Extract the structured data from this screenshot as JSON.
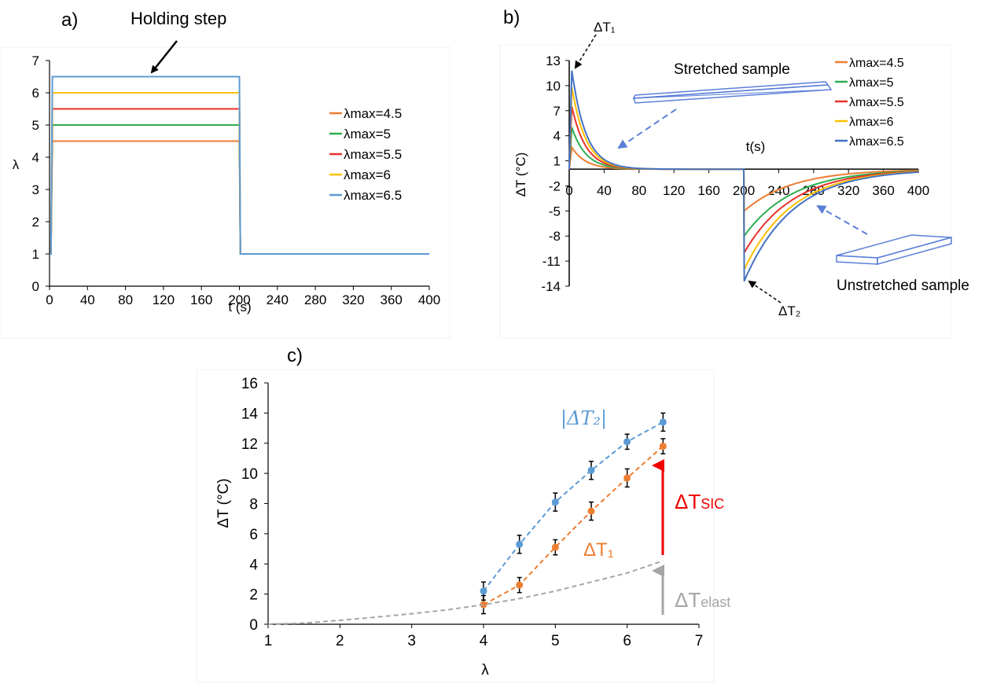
{
  "panels": {
    "a": {
      "label": "a)",
      "annotation": "Holding step"
    },
    "b": {
      "label": "b)",
      "annotation_stretched": "Stretched sample",
      "annotation_unstretched": "Unstretched sample",
      "peak_label_1": "ΔT₁",
      "peak_label_2": "ΔT₂",
      "inner_xlabel": "t(s)"
    },
    "c": {
      "label": "c)",
      "label_abs_dt2": "|ΔT₂|",
      "label_dt1": "ΔT₁",
      "label_dtsic_main": "ΔT",
      "label_dtsic_sub": "SIC",
      "label_dtelast_main": "ΔT",
      "label_dtelast_sub": "elast"
    }
  },
  "chart_data": [
    {
      "id": "a",
      "type": "line",
      "xlabel": "t (s)",
      "ylabel": "λ",
      "xlim": [
        0,
        400
      ],
      "ylim": [
        0,
        7
      ],
      "xticks": [
        "0",
        "40",
        "80",
        "120",
        "160",
        "200",
        "240",
        "280",
        "320",
        "360",
        "400"
      ],
      "yticks": [
        "0",
        "1",
        "2",
        "3",
        "4",
        "5",
        "6",
        "7"
      ],
      "legend_position": "right",
      "series": [
        {
          "name": "λmax=4.5",
          "color": "#ED7D31",
          "hold_value": 4.5,
          "hold_start": 3,
          "hold_end": 200,
          "final_value": 1
        },
        {
          "name": "λmax=5",
          "color": "#2EAE4F",
          "hold_value": 5,
          "hold_start": 3,
          "hold_end": 200,
          "final_value": 1
        },
        {
          "name": "λmax=5.5",
          "color": "#E8312A",
          "hold_value": 5.5,
          "hold_start": 3,
          "hold_end": 200,
          "final_value": 1
        },
        {
          "name": "λmax=6",
          "color": "#FFC000",
          "hold_value": 6,
          "hold_start": 3,
          "hold_end": 200,
          "final_value": 1
        },
        {
          "name": "λmax=6.5",
          "color": "#5B9BD5",
          "hold_value": 6.5,
          "hold_start": 3,
          "hold_end": 200,
          "final_value": 1
        }
      ]
    },
    {
      "id": "b",
      "type": "line",
      "xlabel": "t(s)",
      "ylabel": "ΔT (°C)",
      "xlim": [
        0,
        400
      ],
      "ylim": [
        -14,
        13
      ],
      "xticks": [
        "0",
        "40",
        "80",
        "120",
        "160",
        "200",
        "240",
        "280",
        "320",
        "360",
        "400"
      ],
      "yticks": [
        "13",
        "10",
        "7",
        "4",
        "1",
        "-2",
        "-5",
        "-8",
        "-11",
        "-14"
      ],
      "legend_position": "top-right",
      "series": [
        {
          "name": "λmax=4.5",
          "color": "#ED7D31",
          "peak_heat": 2.6,
          "peak_cool": -5.0
        },
        {
          "name": "λmax=5",
          "color": "#2EAE4F",
          "peak_heat": 5.0,
          "peak_cool": -8.0
        },
        {
          "name": "λmax=5.5",
          "color": "#E8312A",
          "peak_heat": 7.5,
          "peak_cool": -10.0
        },
        {
          "name": "λmax=6",
          "color": "#FFC000",
          "peak_heat": 9.8,
          "peak_cool": -12.0
        },
        {
          "name": "λmax=6.5",
          "color": "#4472C4",
          "peak_heat": 11.8,
          "peak_cool": -13.4
        }
      ]
    },
    {
      "id": "c",
      "type": "scatter",
      "xlabel": "λ",
      "ylabel": "ΔT (°C)",
      "xlim": [
        1,
        7
      ],
      "ylim": [
        0,
        16
      ],
      "xticks": [
        "1",
        "2",
        "3",
        "4",
        "5",
        "6",
        "7"
      ],
      "yticks": [
        "0",
        "2",
        "4",
        "6",
        "8",
        "10",
        "12",
        "14",
        "16"
      ],
      "series": [
        {
          "name": "|ΔT₂|",
          "color": "#5B9BD5",
          "x": [
            4,
            4.5,
            5,
            5.5,
            6,
            6.5
          ],
          "y": [
            2.2,
            5.3,
            8.1,
            10.2,
            12.1,
            13.4
          ],
          "error": [
            0.6,
            0.6,
            0.6,
            0.6,
            0.5,
            0.6
          ]
        },
        {
          "name": "ΔT₁",
          "color": "#ED7D31",
          "x": [
            4,
            4.5,
            5,
            5.5,
            6,
            6.5
          ],
          "y": [
            1.3,
            2.6,
            5.1,
            7.5,
            9.7,
            11.8
          ],
          "error": [
            0.6,
            0.5,
            0.5,
            0.6,
            0.6,
            0.5
          ]
        },
        {
          "name": "ΔTelast",
          "color": "#A6A6A6",
          "x": [
            1,
            1.5,
            2,
            2.5,
            3,
            3.5,
            4,
            4.5,
            5,
            5.5,
            6,
            6.5
          ],
          "y": [
            0,
            0.08,
            0.26,
            0.47,
            0.7,
            0.96,
            1.3,
            1.7,
            2.2,
            2.8,
            3.4,
            4.2
          ]
        }
      ]
    }
  ]
}
